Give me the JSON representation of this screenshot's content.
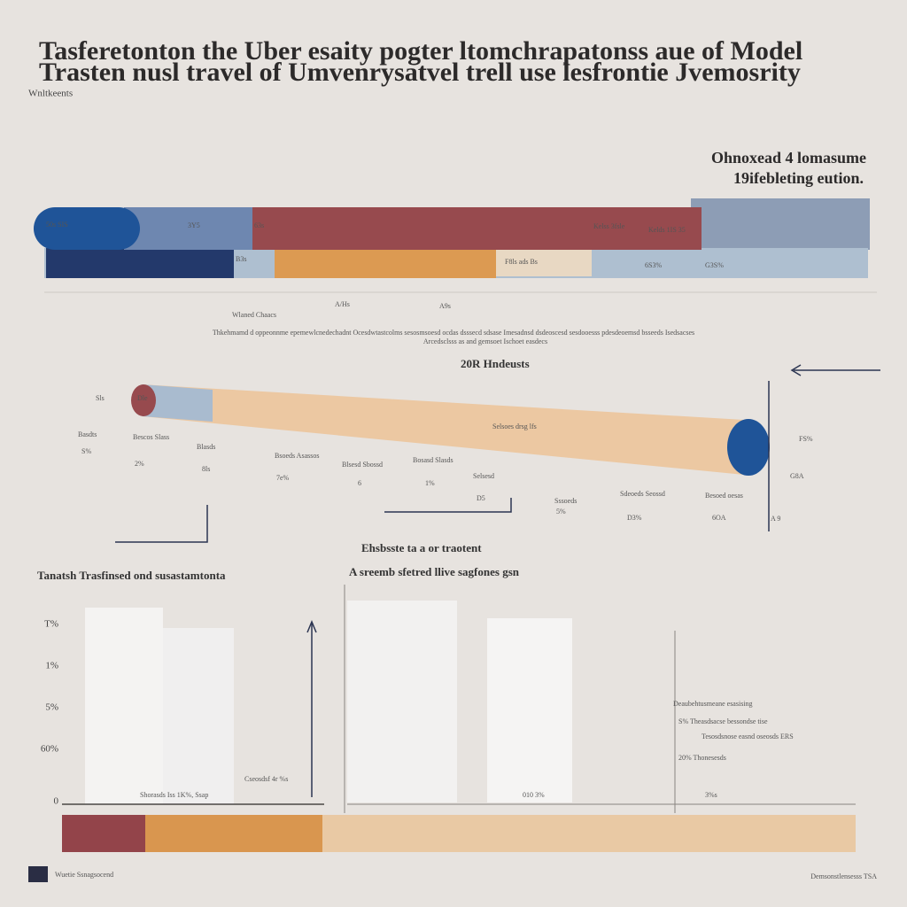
{
  "header": {
    "title_lines": [
      "Tasferetonton the Uber esaity pogter ltomchrapatonss aue of Model",
      "Trasten nusl travel of Umvenrysatvel trell use lesfrontie Jvemosrity"
    ],
    "subtitle": "Wnltkeents"
  },
  "top_panel": {
    "legend_lines": [
      "Ohnoxead 4 lomasume",
      "19ifebleting eution."
    ],
    "labels": [
      "50s SIS",
      "3Y5",
      "63s",
      "Kelss 3fsle",
      "Kelds 1IS 35",
      "B3s",
      "F8ls ads Bs",
      "6S3%",
      "G3S%",
      "A/Hs",
      "A9s",
      "Wlaned Chaacs"
    ],
    "paragraph": [
      "Thkehmamd d oppeonnme epemewlcnedechadnt Ocesdwtastcolms sesosmsoesd ocdas dsssecd sdsase Imesadnsd dsdeoscesd sesdooesss pdesdeoemsd bsseeds Isedsacses",
      "Arcedsclsss as and gemsoet Ischoet easdecs"
    ]
  },
  "middle_panel": {
    "title": "20R Hndeusts",
    "labels": [
      "Sls",
      "Dle",
      "Selsoes drsg lfs",
      "Basdts",
      "S%",
      "Bescos Slass",
      "2%",
      "Blasds",
      "8ls",
      "Bsoeds Asassos",
      "7e%",
      "Blsesd Sbossd",
      "6",
      "Bosasd Slasds",
      "1%",
      "Selsesd",
      "D5",
      "Sssoeds",
      "5%",
      "Sdeoeds Seossd",
      "D3%",
      "Besoed oesas",
      "6OA",
      "FS%",
      "G8A",
      "A 9"
    ]
  },
  "bottom_panel": {
    "heading_left": "Tanatsh Trasfinsed ond susastamtonta",
    "heading_right": [
      "Ehsbsste ta a or traotent",
      "A sreemb sfetred llive sagfones gsn"
    ],
    "y_labels": [
      "T%",
      "1%",
      "5%",
      "60%",
      "0"
    ],
    "bar_labels": [
      "Shorasds Iss 1K%, Ssap",
      "Cseosdsf 4r %s",
      "010 3%",
      "3%s"
    ],
    "notes": [
      "Deaubehtusmeane esasising",
      "S% Theasdsacse bessondse tise",
      "Tesosdsnose easnd oseosds ERS",
      "20% Thonesesds"
    ]
  },
  "footer": {
    "left": "Wuetie Ssnagsocend",
    "right": "Demsonstlensesss TSA"
  }
}
